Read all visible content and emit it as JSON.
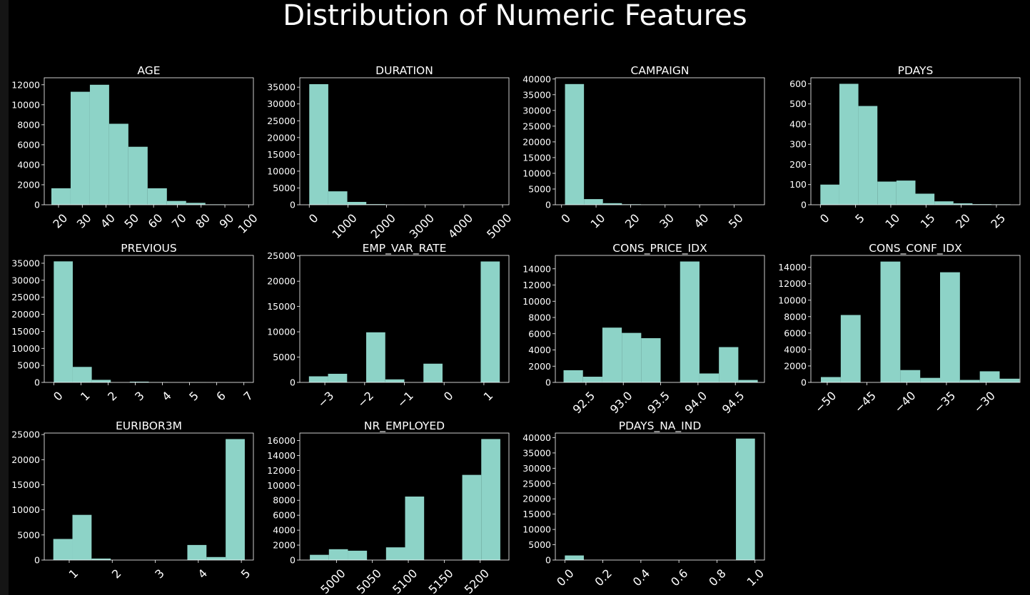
{
  "figure": {
    "title": "Distribution of Numeric Features"
  },
  "colors": {
    "bar": "#8dd3c7",
    "background": "#000000",
    "frame": "#ffffff",
    "text": "#ffffff",
    "outer": "#151515"
  },
  "chart_data": [
    {
      "type": "bar",
      "title": "AGE",
      "xlim": [
        14,
        102
      ],
      "ylim": [
        0,
        12700
      ],
      "bin_edges": [
        17,
        25.1,
        33.2,
        41.3,
        49.4,
        57.5,
        65.6,
        73.7,
        81.8,
        89.9,
        98
      ],
      "counts": [
        1650,
        11300,
        12000,
        8100,
        5800,
        1650,
        380,
        190,
        40,
        10
      ],
      "xticks": [
        20,
        30,
        40,
        50,
        60,
        70,
        80,
        90,
        100
      ],
      "xtick_labels": [
        "20",
        "30",
        "40",
        "50",
        "60",
        "70",
        "80",
        "90",
        "100"
      ],
      "yticks": [
        0,
        2000,
        4000,
        6000,
        8000,
        10000,
        12000
      ],
      "ytick_labels": [
        "0",
        "2000",
        "4000",
        "6000",
        "8000",
        "10000",
        "12000"
      ]
    },
    {
      "type": "bar",
      "title": "DURATION",
      "xlim": [
        -245,
        5165
      ],
      "ylim": [
        0,
        37800
      ],
      "bin_edges": [
        0,
        492,
        984,
        1476,
        1968,
        2460,
        2952,
        3444,
        3936,
        4428,
        4920
      ],
      "counts": [
        35900,
        4000,
        850,
        180,
        40,
        15,
        8,
        5,
        2,
        1
      ],
      "xticks": [
        0,
        1000,
        2000,
        3000,
        4000,
        5000
      ],
      "xtick_labels": [
        "0",
        "1000",
        "2000",
        "3000",
        "4000",
        "5000"
      ],
      "yticks": [
        0,
        5000,
        10000,
        15000,
        20000,
        25000,
        30000,
        35000
      ],
      "ytick_labels": [
        "0",
        "5000",
        "10000",
        "15000",
        "20000",
        "25000",
        "30000",
        "35000"
      ]
    },
    {
      "type": "bar",
      "title": "CAMPAIGN",
      "xlim": [
        -1.8,
        58.8
      ],
      "ylim": [
        0,
        40400
      ],
      "bin_edges": [
        1,
        6.5,
        12,
        17.5,
        23,
        28.5,
        34,
        39.5,
        45,
        50.5,
        56
      ],
      "counts": [
        38400,
        1800,
        500,
        160,
        70,
        50,
        30,
        15,
        5,
        3
      ],
      "xticks": [
        0,
        10,
        20,
        30,
        40,
        50
      ],
      "xtick_labels": [
        "0",
        "10",
        "20",
        "30",
        "40",
        "50"
      ],
      "yticks": [
        0,
        5000,
        10000,
        15000,
        20000,
        25000,
        30000,
        35000,
        40000
      ],
      "ytick_labels": [
        "0",
        "5000",
        "10000",
        "15000",
        "20000",
        "25000",
        "30000",
        "35000",
        "40000"
      ]
    },
    {
      "type": "bar",
      "title": "PDAYS",
      "xlim": [
        -1.35,
        28.35
      ],
      "ylim": [
        0,
        630
      ],
      "bin_edges": [
        0,
        2.7,
        5.4,
        8.1,
        10.8,
        13.5,
        16.2,
        18.9,
        21.6,
        24.3,
        27
      ],
      "counts": [
        100,
        600,
        490,
        115,
        120,
        55,
        17,
        7,
        3,
        2
      ],
      "xticks": [
        0,
        5,
        10,
        15,
        20,
        25
      ],
      "xtick_labels": [
        "0",
        "5",
        "10",
        "15",
        "20",
        "25"
      ],
      "yticks": [
        0,
        100,
        200,
        300,
        400,
        500,
        600
      ],
      "ytick_labels": [
        "0",
        "100",
        "200",
        "300",
        "400",
        "500",
        "600"
      ]
    },
    {
      "type": "bar",
      "title": "PREVIOUS",
      "xlim": [
        -0.35,
        7.35
      ],
      "ylim": [
        0,
        37300
      ],
      "bin_edges": [
        0,
        0.7,
        1.4,
        2.1,
        2.8,
        3.5,
        4.2,
        4.9,
        5.6,
        6.3,
        7
      ],
      "counts": [
        35550,
        4550,
        750,
        0,
        220,
        70,
        0,
        18,
        5,
        1
      ],
      "xticks": [
        0,
        1,
        2,
        3,
        4,
        5,
        6,
        7
      ],
      "xtick_labels": [
        "0",
        "1",
        "2",
        "3",
        "4",
        "5",
        "6",
        "7"
      ],
      "yticks": [
        0,
        5000,
        10000,
        15000,
        20000,
        25000,
        30000,
        35000
      ],
      "ytick_labels": [
        "0",
        "5000",
        "10000",
        "15000",
        "20000",
        "25000",
        "30000",
        "35000"
      ]
    },
    {
      "type": "bar",
      "title": "EMP_VAR_RATE",
      "xlim": [
        -3.63,
        1.63
      ],
      "ylim": [
        0,
        25100
      ],
      "bin_edges": [
        -3.4,
        -2.92,
        -2.44,
        -1.96,
        -1.48,
        -1.0,
        -0.52,
        -0.04,
        0.44,
        0.92,
        1.4
      ],
      "counts": [
        1200,
        1700,
        0,
        9900,
        600,
        0,
        3700,
        0,
        0,
        23900
      ],
      "xticks": [
        -3,
        -2,
        -1,
        0,
        1
      ],
      "xtick_labels": [
        "−3",
        "−2",
        "−1",
        "0",
        "1"
      ],
      "yticks": [
        0,
        5000,
        10000,
        15000,
        20000,
        25000
      ],
      "ytick_labels": [
        "0",
        "5000",
        "10000",
        "15000",
        "20000",
        "25000"
      ]
    },
    {
      "type": "bar",
      "title": "CONS_PRICE_IDX",
      "xlim": [
        92.09,
        94.89
      ],
      "ylim": [
        0,
        15650
      ],
      "bin_edges": [
        92.2,
        92.46,
        92.72,
        92.98,
        93.24,
        93.5,
        93.76,
        94.02,
        94.28,
        94.54,
        94.8
      ],
      "counts": [
        1500,
        700,
        6750,
        6100,
        5450,
        0,
        14900,
        1100,
        4350,
        300
      ],
      "xticks": [
        92.5,
        93.0,
        93.5,
        94.0,
        94.5
      ],
      "xtick_labels": [
        "92.5",
        "93.0",
        "93.5",
        "94.0",
        "94.5"
      ],
      "yticks": [
        0,
        2000,
        4000,
        6000,
        8000,
        10000,
        12000,
        14000
      ],
      "ytick_labels": [
        "0",
        "2000",
        "4000",
        "6000",
        "8000",
        "10000",
        "12000",
        "14000"
      ]
    },
    {
      "type": "bar",
      "title": "CONS_CONF_IDX",
      "xlim": [
        -52.06,
        -25.74
      ],
      "ylim": [
        0,
        15450
      ],
      "bin_edges": [
        -50.8,
        -48.3,
        -45.8,
        -43.3,
        -40.8,
        -38.3,
        -35.8,
        -33.3,
        -30.8,
        -28.3,
        -25.8
      ],
      "counts": [
        650,
        8200,
        0,
        14700,
        1500,
        550,
        13400,
        300,
        1350,
        450
      ],
      "xticks": [
        -50,
        -45,
        -40,
        -35,
        -30
      ],
      "xtick_labels": [
        "−50",
        "−45",
        "−40",
        "−35",
        "−30"
      ],
      "yticks": [
        0,
        2000,
        4000,
        6000,
        8000,
        10000,
        12000,
        14000
      ],
      "ytick_labels": [
        "0",
        "2000",
        "4000",
        "6000",
        "8000",
        "10000",
        "12000",
        "14000"
      ]
    },
    {
      "type": "bar",
      "title": "EURIBOR3M",
      "xlim": [
        0.42,
        5.28
      ],
      "ylim": [
        0,
        25300
      ],
      "bin_edges": [
        0.63,
        1.075,
        1.52,
        1.965,
        2.41,
        2.855,
        3.3,
        3.745,
        4.19,
        4.635,
        5.08
      ],
      "counts": [
        4200,
        9000,
        300,
        0,
        0,
        0,
        0,
        3000,
        600,
        24100
      ],
      "xticks": [
        1,
        2,
        3,
        4,
        5
      ],
      "xtick_labels": [
        "1",
        "2",
        "3",
        "4",
        "5"
      ],
      "yticks": [
        0,
        5000,
        10000,
        15000,
        20000,
        25000
      ],
      "ytick_labels": [
        "0",
        "5000",
        "10000",
        "15000",
        "20000",
        "25000"
      ]
    },
    {
      "type": "bar",
      "title": "NR_EMPLOYED",
      "xlim": [
        4949,
        5240
      ],
      "ylim": [
        0,
        17000
      ],
      "bin_edges": [
        4963,
        4989.5,
        5016,
        5042.5,
        5069,
        5095.5,
        5122,
        5148.5,
        5175,
        5201.5,
        5228
      ],
      "counts": [
        700,
        1450,
        1250,
        0,
        1700,
        8500,
        0,
        0,
        11400,
        16200
      ],
      "xticks": [
        5000,
        5050,
        5100,
        5150,
        5200
      ],
      "xtick_labels": [
        "5000",
        "5050",
        "5100",
        "5150",
        "5200"
      ],
      "yticks": [
        0,
        2000,
        4000,
        6000,
        8000,
        10000,
        12000,
        14000,
        16000
      ],
      "ytick_labels": [
        "0",
        "2000",
        "4000",
        "6000",
        "8000",
        "10000",
        "12000",
        "14000",
        "16000"
      ]
    },
    {
      "type": "bar",
      "title": "PDAYS_NA_IND",
      "xlim": [
        -0.05,
        1.05
      ],
      "ylim": [
        0,
        41500
      ],
      "bin_edges": [
        0,
        0.1,
        0.2,
        0.3,
        0.4,
        0.5,
        0.6,
        0.7,
        0.8,
        0.9,
        1.0
      ],
      "counts": [
        1500,
        0,
        0,
        0,
        0,
        0,
        0,
        0,
        0,
        39700
      ],
      "xticks": [
        0.0,
        0.2,
        0.4,
        0.6,
        0.8,
        1.0
      ],
      "xtick_labels": [
        "0.0",
        "0.2",
        "0.4",
        "0.6",
        "0.8",
        "1.0"
      ],
      "yticks": [
        0,
        5000,
        10000,
        15000,
        20000,
        25000,
        30000,
        35000,
        40000
      ],
      "ytick_labels": [
        "0",
        "5000",
        "10000",
        "15000",
        "20000",
        "25000",
        "30000",
        "35000",
        "40000"
      ]
    }
  ]
}
